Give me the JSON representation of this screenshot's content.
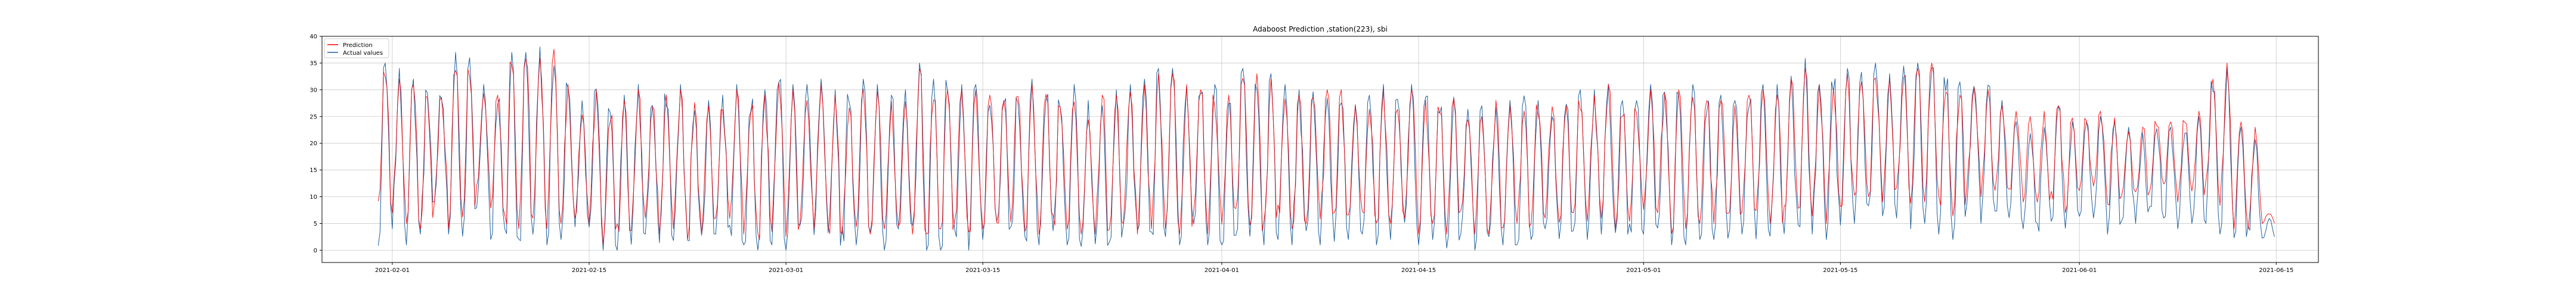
{
  "chart_data": {
    "type": "line",
    "title": "Adaboost Prediction ,station(223), sbi",
    "xlabel": "",
    "ylabel": "",
    "grid": true,
    "legend_location": "top-left",
    "colors": {
      "Prediction": "#ff0000",
      "Actual values": "#1f5f9f",
      "grid": "#b0b0b0"
    },
    "x_range": [
      "2021-01-27",
      "2021-06-18"
    ],
    "ylim": [
      -2.3,
      40
    ],
    "x_ticks": [
      "2021-02-01",
      "2021-02-15",
      "2021-03-01",
      "2021-03-15",
      "2021-04-01",
      "2021-04-15",
      "2021-05-01",
      "2021-05-15",
      "2021-06-01",
      "2021-06-15"
    ],
    "y_ticks": [
      0,
      5,
      10,
      15,
      20,
      25,
      30,
      35,
      40
    ],
    "data_start": "2021-01-31",
    "data_end": "2021-06-11",
    "series": [
      {
        "name": "Prediction",
        "approx_daily": {
          "min": [
            8,
            7,
            5,
            4,
            9,
            4,
            5,
            12,
            6,
            4,
            4,
            6,
            4,
            5,
            6,
            5,
            1,
            2,
            3,
            6,
            3,
            4,
            2,
            3,
            6,
            4,
            3,
            1,
            3,
            2,
            4,
            4,
            2,
            3,
            4,
            3,
            3,
            4,
            3,
            1,
            3,
            4,
            2,
            4,
            4,
            4,
            3,
            3,
            4,
            3,
            3,
            3,
            3,
            5,
            3,
            4,
            4,
            3,
            4,
            3,
            4,
            5,
            3,
            4,
            6,
            4,
            5,
            4,
            4,
            5,
            6,
            4,
            5,
            6,
            3,
            5,
            3,
            6,
            3,
            3,
            3,
            3,
            5,
            6,
            5,
            7,
            5,
            6,
            4,
            5,
            6,
            6,
            3,
            4,
            5,
            5,
            5,
            6,
            5,
            4,
            6,
            7,
            6,
            5,
            7,
            9,
            10,
            9,
            9,
            8,
            9,
            7,
            5,
            12,
            10,
            11,
            10,
            9,
            7,
            9,
            7,
            11,
            12,
            8,
            9,
            10,
            11,
            12,
            9,
            10,
            11,
            8,
            4,
            4,
            5
          ],
          "max": [
            34,
            32,
            31,
            30,
            30,
            36,
            35,
            30,
            29,
            36,
            38,
            37,
            38,
            31,
            27,
            30,
            27,
            28,
            30,
            27,
            29,
            30,
            28,
            27,
            28,
            30,
            28,
            29,
            34,
            30,
            30,
            31,
            29,
            30,
            31,
            30,
            28,
            29,
            34,
            31,
            32,
            30,
            30,
            29,
            28,
            30,
            31,
            30,
            28,
            30,
            27,
            29,
            29,
            30,
            31,
            33,
            33,
            31,
            30,
            30,
            29,
            33,
            33,
            32,
            30,
            29,
            29,
            30,
            30,
            27,
            28,
            30,
            29,
            30,
            29,
            28,
            29,
            26,
            26,
            28,
            27,
            28,
            28,
            27,
            27,
            29,
            29,
            31,
            27,
            27,
            30,
            30,
            30,
            30,
            28,
            28,
            27,
            29,
            30,
            30,
            32,
            34,
            31,
            32,
            33,
            33,
            34,
            32,
            34,
            34,
            35,
            32,
            31,
            32,
            30,
            27,
            26,
            25,
            26,
            27,
            25,
            25,
            26,
            25,
            24,
            23,
            25,
            24,
            25,
            26,
            32,
            35,
            24,
            23,
            7
          ]
        }
      },
      {
        "name": "Actual values",
        "approx_daily": {
          "min": [
            0,
            4,
            1,
            3,
            7,
            3,
            2,
            8,
            2,
            0,
            1,
            3,
            1,
            2,
            3,
            1,
            0,
            0,
            0,
            3,
            1,
            1,
            0,
            1,
            3,
            1,
            1,
            0,
            1,
            0,
            2,
            2,
            0,
            1,
            1,
            1,
            0,
            1,
            1,
            0,
            0,
            1,
            0,
            1,
            2,
            1,
            0,
            1,
            1,
            1,
            0,
            0,
            1,
            1,
            0,
            1,
            2,
            1,
            2,
            1,
            1,
            2,
            1,
            1,
            2,
            1,
            2,
            1,
            1,
            2,
            3,
            1,
            2,
            3,
            1,
            2,
            0,
            3,
            0,
            0,
            0,
            1,
            2,
            3,
            2,
            3,
            2,
            3,
            1,
            2,
            3,
            3,
            1,
            1,
            2,
            2,
            2,
            3,
            2,
            1,
            3,
            3,
            3,
            2,
            4,
            5,
            7,
            4,
            6,
            4,
            5,
            3,
            2,
            7,
            5,
            6,
            5,
            4,
            3,
            5,
            3,
            5,
            6,
            3,
            4,
            5,
            6,
            6,
            4,
            5,
            5,
            3,
            1,
            2,
            2
          ],
          "max": [
            35,
            34,
            32,
            32,
            31,
            37,
            36,
            31,
            30,
            37,
            37,
            38,
            37,
            32,
            28,
            31,
            28,
            29,
            31,
            28,
            30,
            31,
            29,
            28,
            29,
            31,
            29,
            30,
            35,
            31,
            31,
            32,
            30,
            31,
            32,
            31,
            29,
            30,
            35,
            32,
            33,
            31,
            31,
            30,
            29,
            31,
            32,
            31,
            29,
            31,
            28,
            30,
            30,
            31,
            32,
            34,
            34,
            32,
            31,
            31,
            30,
            34,
            34,
            33,
            31,
            30,
            30,
            31,
            31,
            28,
            29,
            31,
            30,
            31,
            30,
            29,
            30,
            27,
            27,
            29,
            28,
            29,
            29,
            28,
            28,
            30,
            30,
            32,
            28,
            28,
            31,
            31,
            31,
            31,
            29,
            29,
            28,
            30,
            31,
            31,
            33,
            37,
            32,
            33,
            34,
            34,
            35,
            33,
            35,
            35,
            36,
            33,
            32,
            33,
            32,
            28,
            26,
            24,
            25,
            27,
            24,
            24,
            25,
            24,
            23,
            22,
            24,
            23,
            24,
            25,
            33,
            34,
            23,
            22,
            6
          ]
        }
      }
    ]
  }
}
